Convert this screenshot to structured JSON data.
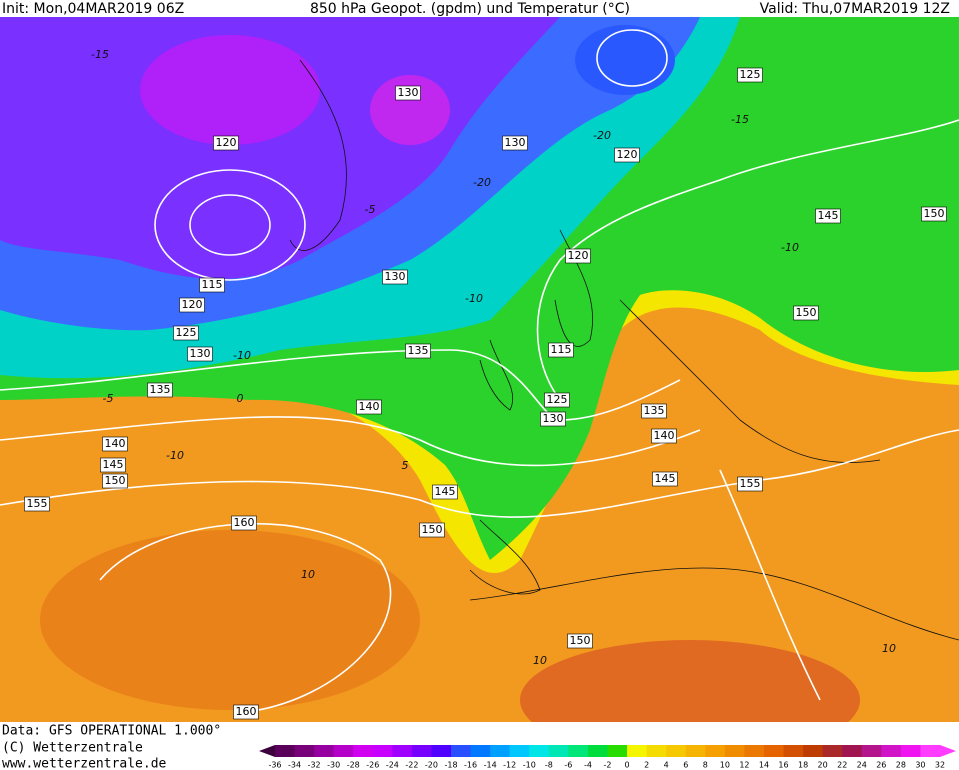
{
  "header": {
    "init": "Init: Mon,04MAR2019 06Z",
    "title": "850 hPa Geopot. (gpdm) und Temperatur (°C)",
    "valid": "Valid: Thu,07MAR2019 12Z"
  },
  "footer": {
    "data": "Data: GFS OPERATIONAL 1.000°",
    "copyright": "(C) Wetterzentrale",
    "url": "www.wetterzentrale.de"
  },
  "map": {
    "contour_labels": [
      "130",
      "120",
      "130",
      "120",
      "125",
      "145",
      "150",
      "120",
      "130",
      "115",
      "120",
      "125",
      "130",
      "150",
      "115",
      "135",
      "135",
      "125",
      "130",
      "135",
      "140",
      "140",
      "140",
      "145",
      "150",
      "145",
      "155",
      "145",
      "155",
      "150",
      "160",
      "150",
      "160"
    ],
    "temperature_labels": [
      "-15",
      "-20",
      "-15",
      "-20",
      "-10",
      "-10",
      "-10",
      "-5",
      "0",
      "5",
      "-10",
      "10",
      "10",
      "10",
      "-5"
    ]
  },
  "scale": {
    "values": [
      -36,
      -34,
      -32,
      -30,
      -28,
      -26,
      -24,
      -22,
      -20,
      -18,
      -16,
      -14,
      -12,
      -10,
      -8,
      -6,
      -4,
      -2,
      0,
      2,
      4,
      6,
      8,
      10,
      12,
      14,
      16,
      18,
      20,
      22,
      24,
      26,
      28,
      30,
      32
    ],
    "colors": [
      "#3c003c",
      "#5a005a",
      "#780078",
      "#9600a0",
      "#b400c8",
      "#d200f0",
      "#c800ff",
      "#a000ff",
      "#7800ff",
      "#5000ff",
      "#2850ff",
      "#0078ff",
      "#00a0ff",
      "#00c8ff",
      "#00e6e6",
      "#00e6b4",
      "#00e678",
      "#00dc3c",
      "#28dc00",
      "#f5f500",
      "#f5dc00",
      "#f5c800",
      "#f5b400",
      "#f5a000",
      "#f08c00",
      "#eb7800",
      "#e66400",
      "#d25000",
      "#be3c00",
      "#aa2828",
      "#a01450",
      "#b4148c",
      "#d214c8",
      "#f014f0",
      "#ff3cff"
    ]
  }
}
